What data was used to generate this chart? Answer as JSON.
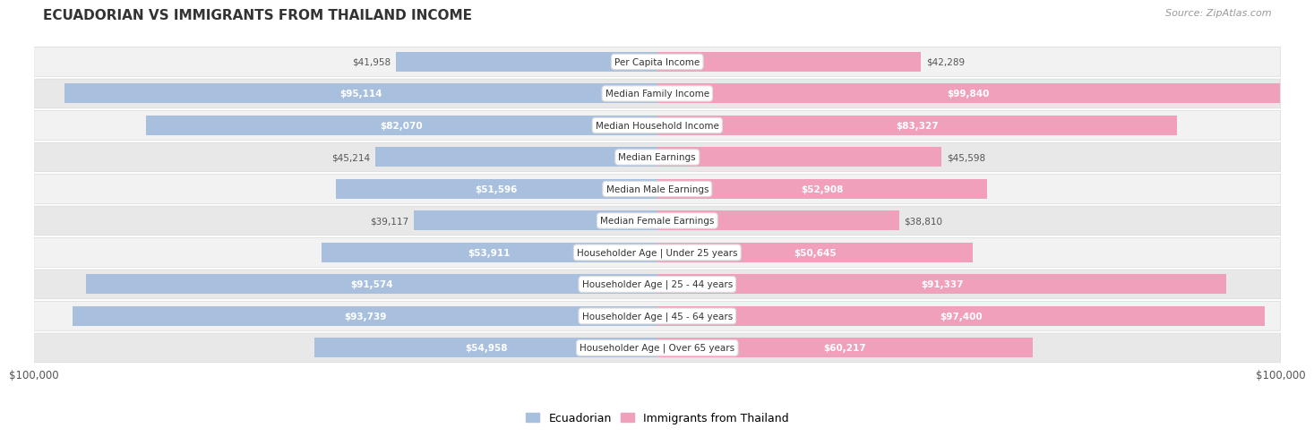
{
  "title": "ECUADORIAN VS IMMIGRANTS FROM THAILAND INCOME",
  "source": "Source: ZipAtlas.com",
  "categories": [
    "Per Capita Income",
    "Median Family Income",
    "Median Household Income",
    "Median Earnings",
    "Median Male Earnings",
    "Median Female Earnings",
    "Householder Age | Under 25 years",
    "Householder Age | 25 - 44 years",
    "Householder Age | 45 - 64 years",
    "Householder Age | Over 65 years"
  ],
  "ecuadorian": [
    41958,
    95114,
    82070,
    45214,
    51596,
    39117,
    53911,
    91574,
    93739,
    54958
  ],
  "thailand": [
    42289,
    99840,
    83327,
    45598,
    52908,
    38810,
    50645,
    91337,
    97400,
    60217
  ],
  "max_val": 100000,
  "blue_color": "#a8c0de",
  "pink_color": "#f0a0bb",
  "bg_color": "#ffffff",
  "row_bg_light": "#f2f2f2",
  "row_bg_dark": "#e8e8e8",
  "row_border": "#d8d8d8",
  "label_inside_color": "#ffffff",
  "label_outside_color": "#555555",
  "center_label_bg": "#f8f8f8",
  "center_label_border": "#dddddd",
  "legend_blue": "#a8c0de",
  "legend_pink": "#f0a0bb",
  "inside_threshold": 0.48
}
